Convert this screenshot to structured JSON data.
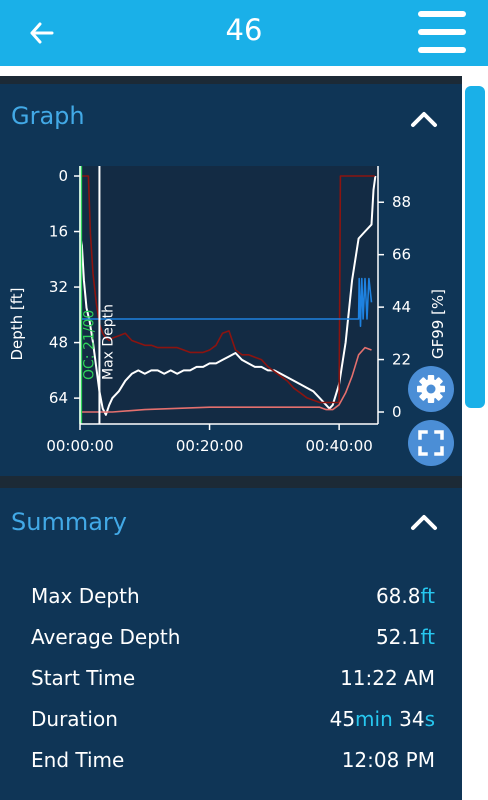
{
  "header": {
    "title": "46",
    "back_icon": "back-arrow-icon",
    "menu_icon": "hamburger-menu-icon"
  },
  "graph_section": {
    "title": "Graph",
    "collapse_icon": "chevron-up-icon",
    "settings_icon": "gear-icon",
    "fullscreen_icon": "fullscreen-icon",
    "chart_data": {
      "type": "line",
      "ylabel": "Depth [ft]",
      "y2label": "GF99 [%]",
      "xticks": [
        "00:00:00",
        "00:20:00",
        "00:40:00"
      ],
      "yticks": [
        "0",
        "16",
        "32",
        "48",
        "64"
      ],
      "y2ticks": [
        "88",
        "66",
        "44",
        "22",
        "0"
      ],
      "ylim": [
        0,
        68
      ],
      "y2lim": [
        0,
        99
      ],
      "xlim_minutes": [
        0,
        46
      ],
      "annotations": [
        {
          "text": "OC: 21/00",
          "x_minutes": 0.1,
          "color": "#2fd15a"
        },
        {
          "text": "Max Depth",
          "x_minutes": 3.0,
          "color": "#ffffff"
        }
      ],
      "series": [
        {
          "color": "#ffffff",
          "axis": "depth",
          "x": [
            0,
            0.3,
            0.6,
            1,
            1.5,
            2,
            2.5,
            3,
            3.5,
            4,
            4.5,
            5,
            6,
            7,
            8,
            9,
            10,
            11,
            12,
            13,
            14,
            15,
            16,
            17,
            18,
            19,
            20,
            21,
            22,
            23,
            24,
            25,
            26,
            27,
            28,
            29,
            30,
            31,
            32,
            33,
            34,
            35,
            36,
            37,
            38,
            38.5,
            39,
            40,
            41,
            42,
            43,
            44,
            45,
            45.3,
            45.6
          ],
          "values": [
            17,
            20,
            30,
            38,
            42,
            48,
            55,
            62,
            67,
            68.8,
            66,
            64,
            62,
            59,
            57,
            56,
            57,
            56,
            56,
            57,
            56,
            57,
            56,
            56,
            55,
            55,
            54,
            54,
            53,
            52,
            51,
            53,
            54,
            55,
            55,
            56,
            56,
            57,
            58,
            59,
            60,
            61,
            62,
            64,
            66,
            67,
            66,
            60,
            48,
            30,
            18,
            16,
            14,
            4,
            0
          ]
        },
        {
          "color": "#8b1410",
          "axis": "gf",
          "x": [
            0,
            0.5,
            1,
            1.3,
            1.6,
            2,
            2.5,
            3,
            3.5,
            4,
            4.5,
            5,
            6,
            7,
            8,
            9,
            10,
            11,
            12,
            13,
            14,
            15,
            16,
            17,
            18,
            19,
            20,
            21,
            22,
            23,
            24,
            25,
            26,
            27,
            28,
            29,
            30,
            31,
            32,
            33,
            34,
            35,
            36,
            37,
            38,
            39,
            40,
            40.2,
            41,
            42,
            43,
            44,
            45,
            45.5
          ],
          "values": [
            99,
            99,
            99,
            99,
            75,
            58,
            46,
            37,
            33,
            31,
            30,
            31,
            32,
            33,
            30,
            29,
            28,
            28,
            27,
            27,
            27,
            27,
            26,
            25,
            25,
            25,
            26,
            28,
            33,
            34,
            26,
            24,
            24,
            23,
            22,
            19,
            17,
            15,
            13,
            10,
            8,
            6,
            5,
            4,
            4,
            4,
            4,
            99,
            99,
            99,
            99,
            99,
            99,
            99
          ]
        },
        {
          "color": "#e4706e",
          "axis": "gf",
          "x": [
            0,
            5,
            10,
            20,
            30,
            35,
            37,
            38,
            39,
            40,
            41,
            42,
            43,
            44,
            45
          ],
          "values": [
            0,
            0,
            1,
            2,
            2,
            2,
            2,
            1,
            1,
            3,
            8,
            15,
            24,
            27,
            26
          ]
        },
        {
          "color": "#1e82e0",
          "axis": "gf",
          "x": [
            0,
            43,
            43.1,
            43.3,
            43.5,
            43.7,
            44,
            44.3,
            44.6,
            45
          ],
          "values": [
            39,
            39,
            56,
            36,
            56,
            39,
            56,
            39,
            56,
            46
          ]
        }
      ]
    }
  },
  "summary_section": {
    "title": "Summary",
    "collapse_icon": "chevron-up-icon",
    "rows": [
      {
        "label": "Max Depth",
        "value": "68.8",
        "unit": "ft"
      },
      {
        "label": "Average Depth",
        "value": "52.1",
        "unit": "ft"
      },
      {
        "label": "Start Time",
        "value": "11:22 AM"
      },
      {
        "label": "Duration",
        "value_min": "45",
        "unit_min": "min",
        "value_sec": "34",
        "unit_sec": "s"
      },
      {
        "label": "End Time",
        "value": "12:08 PM"
      }
    ]
  }
}
